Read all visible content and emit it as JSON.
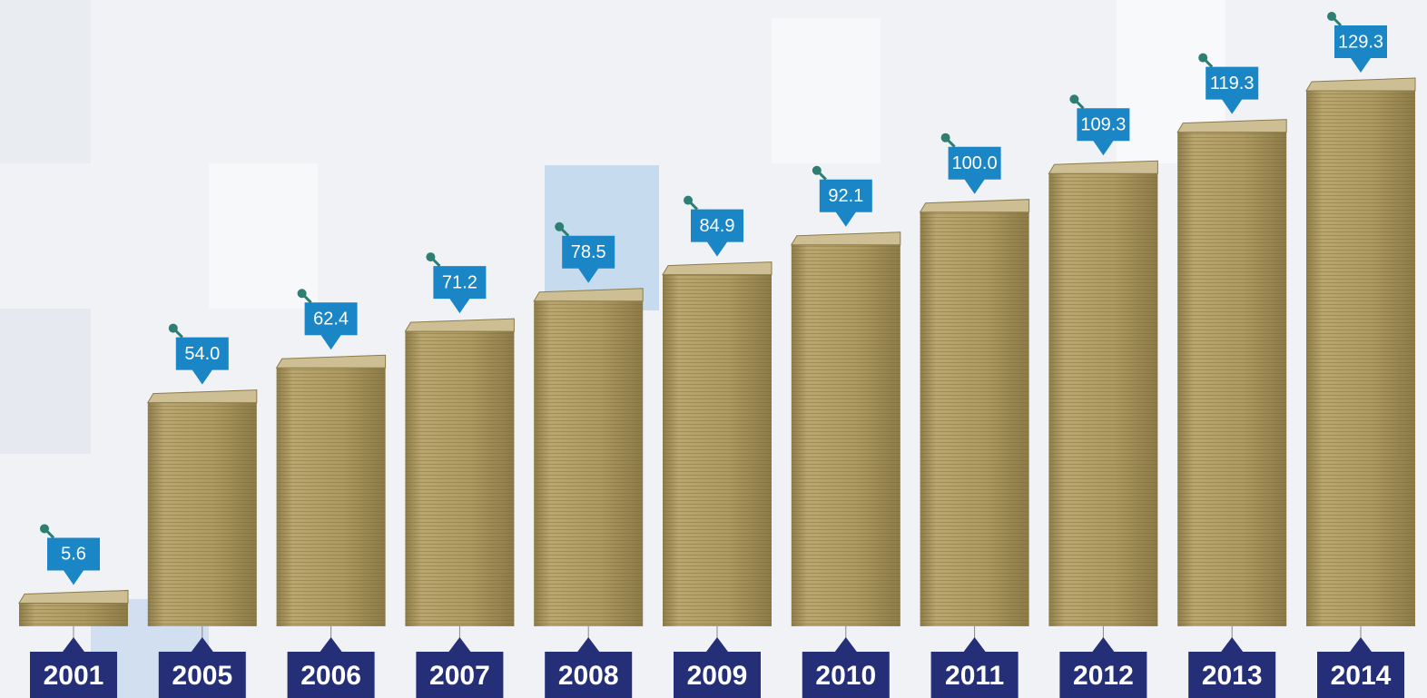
{
  "chart_data": {
    "type": "bar",
    "categories": [
      "2001",
      "2005",
      "2006",
      "2007",
      "2008",
      "2009",
      "2010",
      "2011",
      "2012",
      "2013",
      "2014"
    ],
    "values": [
      5.6,
      54.0,
      62.4,
      71.2,
      78.5,
      84.9,
      92.1,
      100.0,
      109.3,
      119.3,
      129.3
    ],
    "value_labels": [
      "5.6",
      "54.0",
      "62.4",
      "71.2",
      "78.5",
      "84.9",
      "92.1",
      "100.0",
      "109.3",
      "119.3",
      "129.3"
    ],
    "color": "#ad9a62",
    "label_color": "#1a86c6",
    "category_color": "#252f78"
  }
}
